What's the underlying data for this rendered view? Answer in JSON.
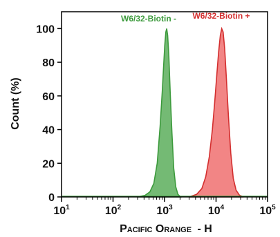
{
  "chart_data": {
    "type": "area",
    "xlabel_main": "Pacific Orange",
    "xlabel_suffix": "- H",
    "ylabel": "Count (%)",
    "x_scale": "log",
    "xlim": [
      10,
      100000
    ],
    "ylim": [
      0,
      110
    ],
    "y_ticks": [
      "0",
      "20",
      "40",
      "60",
      "80",
      "100"
    ],
    "x_ticks": [
      {
        "base": "10",
        "exp": "1"
      },
      {
        "base": "10",
        "exp": "2"
      },
      {
        "base": "10",
        "exp": "3"
      },
      {
        "base": "10",
        "exp": "4"
      },
      {
        "base": "10",
        "exp": "5"
      }
    ],
    "series": [
      {
        "name": "W6/32-Biotin -",
        "color": "#3c9a3c",
        "fill": "#5cae5c",
        "points": [
          [
            300,
            0
          ],
          [
            420,
            1
          ],
          [
            520,
            3
          ],
          [
            620,
            8
          ],
          [
            720,
            20
          ],
          [
            820,
            42
          ],
          [
            900,
            62
          ],
          [
            960,
            78
          ],
          [
            1010,
            90
          ],
          [
            1060,
            98
          ],
          [
            1100,
            100
          ],
          [
            1150,
            96
          ],
          [
            1210,
            84
          ],
          [
            1290,
            62
          ],
          [
            1390,
            38
          ],
          [
            1510,
            17
          ],
          [
            1650,
            6
          ],
          [
            1820,
            1.5
          ],
          [
            2050,
            0
          ]
        ]
      },
      {
        "name": "W6/32-Biotin +",
        "color": "#d32f2f",
        "fill": "#f07070",
        "points": [
          [
            3000,
            0
          ],
          [
            4200,
            1.5
          ],
          [
            5300,
            5
          ],
          [
            6300,
            12
          ],
          [
            7400,
            24
          ],
          [
            8500,
            40
          ],
          [
            9400,
            56
          ],
          [
            10300,
            72
          ],
          [
            11200,
            86
          ],
          [
            12100,
            96
          ],
          [
            12900,
            100
          ],
          [
            13700,
            98
          ],
          [
            14700,
            88
          ],
          [
            15900,
            70
          ],
          [
            17400,
            48
          ],
          [
            19300,
            26
          ],
          [
            21600,
            11
          ],
          [
            24500,
            4
          ],
          [
            28500,
            1
          ],
          [
            34000,
            0
          ]
        ]
      }
    ]
  }
}
